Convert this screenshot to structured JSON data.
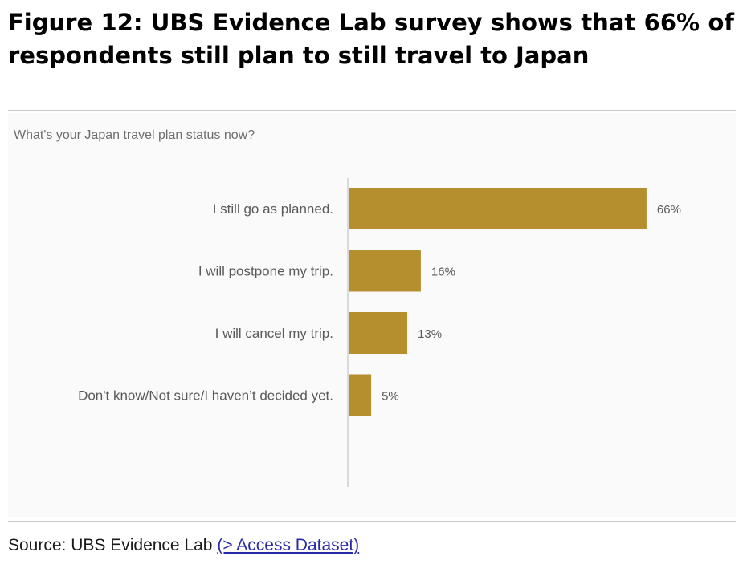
{
  "figure_title": "Figure 12: UBS Evidence Lab survey shows that 66% of respondents still plan to still travel to Japan",
  "source": {
    "prefix": "Source: UBS Evidence Lab",
    "link_text": "(> Access Dataset)"
  },
  "colors": {
    "bar": "#b58e2e",
    "axis": "#d0d0d0"
  },
  "chart_data": {
    "type": "bar",
    "orientation": "horizontal",
    "title": "What's your Japan travel plan status now?",
    "categories": [
      "I still go as planned.",
      "I will postpone my trip.",
      "I will cancel my trip.",
      "Don't know/Not sure/I haven’t decided yet."
    ],
    "values": [
      66,
      16,
      13,
      5
    ],
    "value_labels": [
      "66%",
      "16%",
      "13%",
      "5%"
    ],
    "xlim": [
      0,
      100
    ],
    "grid": false
  }
}
